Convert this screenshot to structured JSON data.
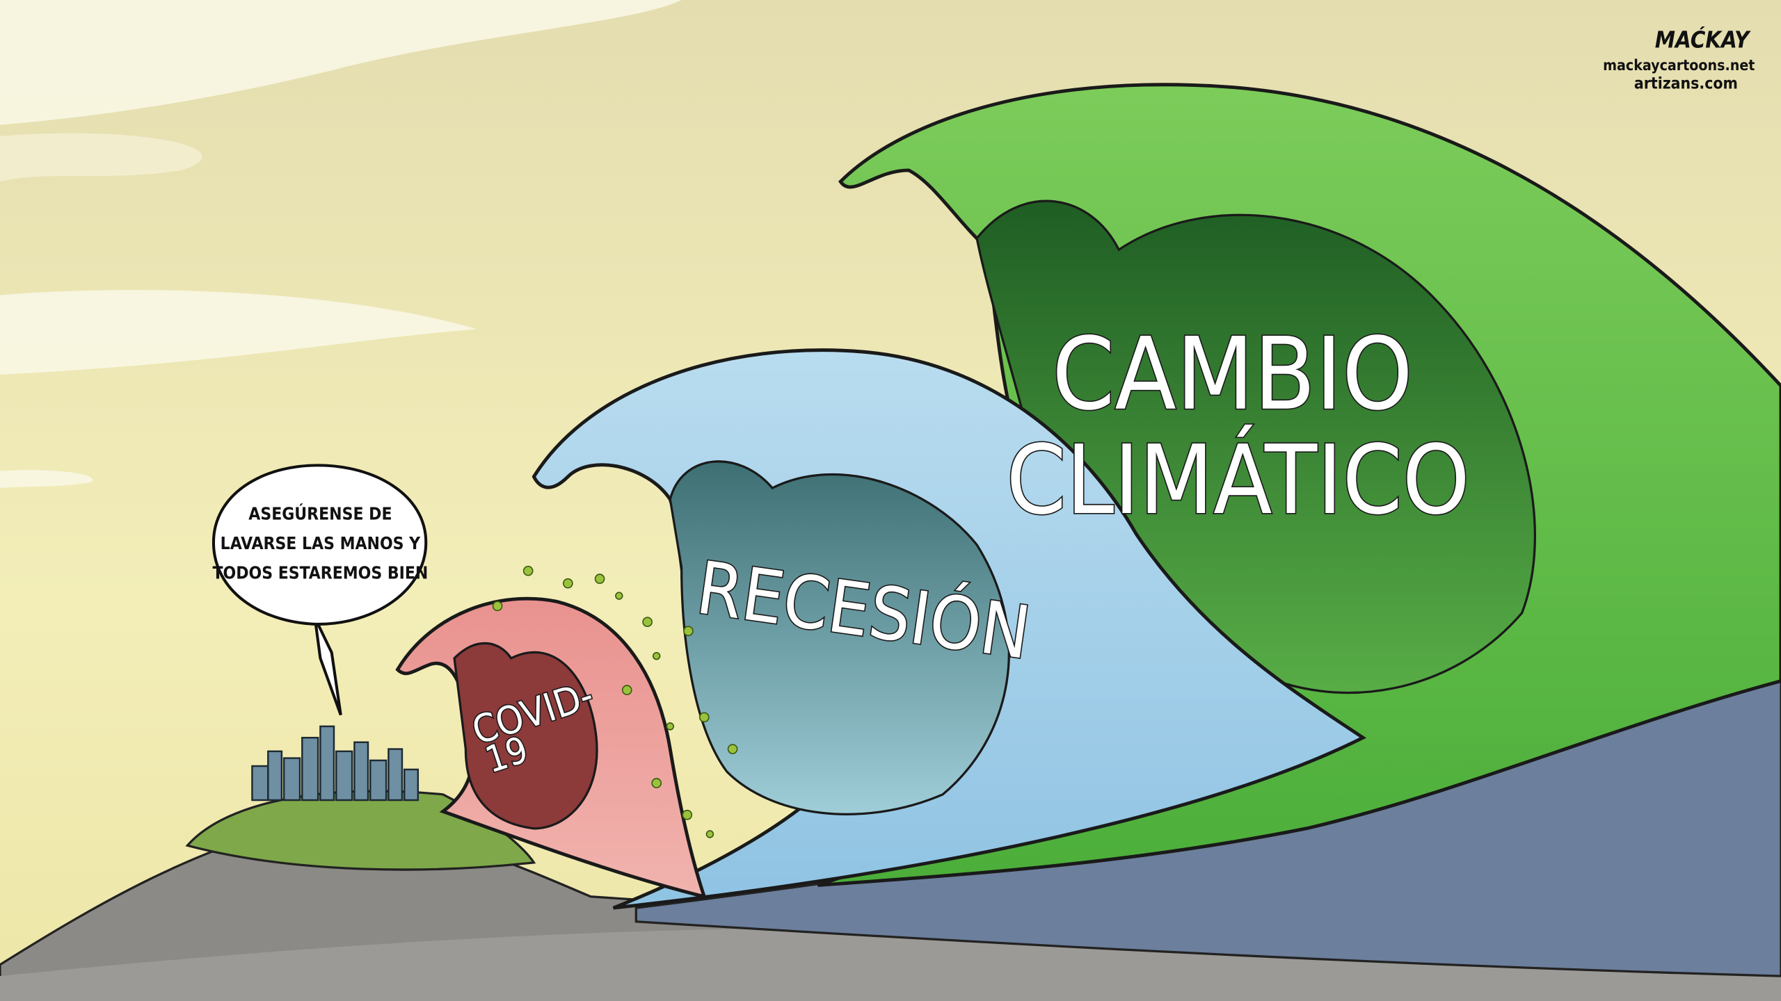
{
  "signature": {
    "name": "MAĆKAY",
    "site_1": "mackaycartoons.net",
    "site_2": "artizans.com"
  },
  "speech_bubble": {
    "lines": [
      "ASEGÚRENSE DE",
      "LAVARSE LAS MANOS Y",
      "TODOS ESTAREMOS BIEN"
    ]
  },
  "waves": [
    {
      "label_lines": [
        "CAMBIO",
        "CLIMÁTICO"
      ]
    },
    {
      "label_lines": [
        "RECESIÓN"
      ]
    },
    {
      "label_lines": [
        "COVID-",
        "19"
      ]
    }
  ]
}
